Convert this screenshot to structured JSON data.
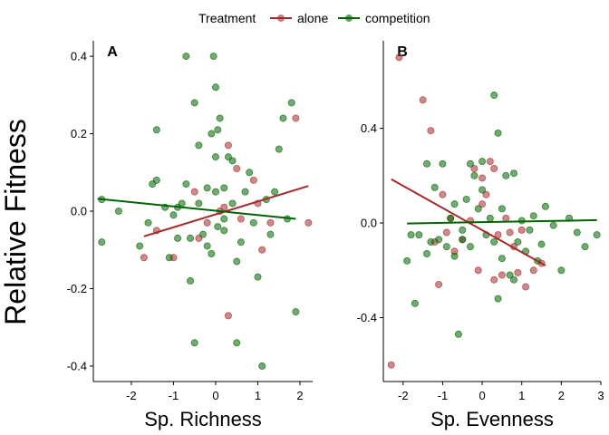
{
  "legend": {
    "title": "Treatment",
    "items": [
      {
        "label": "alone",
        "color": "#a52a2a"
      },
      {
        "label": "competition",
        "color": "#006400"
      }
    ]
  },
  "y_label": "Relative Fitness",
  "chart_data": [
    {
      "type": "scatter",
      "panel": "A",
      "xlabel": "Sp. Richness",
      "ylabel": "Relative Fitness",
      "xlim": [
        -2.9,
        2.3
      ],
      "ylim": [
        -0.44,
        0.44
      ],
      "xticks": [
        -2,
        -1,
        0,
        1,
        2
      ],
      "yticks": [
        -0.4,
        -0.2,
        0.0,
        0.2,
        0.4
      ],
      "ytick_labels": [
        "-0.4",
        "-0.2",
        "0.0",
        "0.2",
        "0.4"
      ],
      "grid": false,
      "series": [
        {
          "name": "alone",
          "color": "#a52a2a",
          "points": [
            [
              -1.7,
              -0.12
            ],
            [
              -1.0,
              -0.12
            ],
            [
              -1.4,
              -0.05
            ],
            [
              -0.5,
              0.05
            ],
            [
              -0.2,
              -0.03
            ],
            [
              0.1,
              0.0
            ],
            [
              0.3,
              0.17
            ],
            [
              0.5,
              0.11
            ],
            [
              0.6,
              -0.02
            ],
            [
              0.9,
              0.08
            ],
            [
              1.0,
              0.02
            ],
            [
              1.3,
              -0.03
            ],
            [
              1.9,
              0.24
            ],
            [
              2.2,
              -0.03
            ],
            [
              0.3,
              -0.27
            ],
            [
              -0.4,
              -0.07
            ],
            [
              0.2,
              0.01
            ],
            [
              1.1,
              -0.1
            ]
          ],
          "trend": [
            [
              -1.7,
              -0.065
            ],
            [
              2.2,
              0.065
            ]
          ]
        },
        {
          "name": "competition",
          "color": "#006400",
          "points": [
            [
              -2.7,
              0.03
            ],
            [
              -2.7,
              -0.08
            ],
            [
              -2.3,
              0.0
            ],
            [
              -1.8,
              -0.09
            ],
            [
              -1.6,
              -0.03
            ],
            [
              -1.5,
              0.07
            ],
            [
              -1.4,
              0.08
            ],
            [
              -1.4,
              0.21
            ],
            [
              -1.2,
              0.01
            ],
            [
              -1.1,
              -0.12
            ],
            [
              -1.0,
              -0.01
            ],
            [
              -0.9,
              0.01
            ],
            [
              -0.8,
              0.02
            ],
            [
              -0.7,
              0.4
            ],
            [
              -0.7,
              0.07
            ],
            [
              -0.6,
              -0.07
            ],
            [
              -0.6,
              -0.18
            ],
            [
              -0.5,
              0.28
            ],
            [
              -0.4,
              0.17
            ],
            [
              -0.4,
              0.02
            ],
            [
              -0.3,
              -0.06
            ],
            [
              -0.2,
              -0.09
            ],
            [
              -0.2,
              0.06
            ],
            [
              -0.1,
              -0.11
            ],
            [
              -0.05,
              0.4
            ],
            [
              0.0,
              0.32
            ],
            [
              0.0,
              0.14
            ],
            [
              0.05,
              0.21
            ],
            [
              0.05,
              -0.04
            ],
            [
              0.1,
              0.24
            ],
            [
              0.2,
              0.06
            ],
            [
              0.2,
              -0.02
            ],
            [
              0.3,
              0.14
            ],
            [
              0.4,
              0.02
            ],
            [
              0.5,
              -0.13
            ],
            [
              0.5,
              -0.34
            ],
            [
              0.6,
              -0.08
            ],
            [
              0.7,
              0.05
            ],
            [
              0.8,
              0.1
            ],
            [
              0.9,
              -0.03
            ],
            [
              1.0,
              -0.17
            ],
            [
              1.1,
              -0.4
            ],
            [
              1.2,
              0.03
            ],
            [
              1.4,
              0.05
            ],
            [
              1.5,
              0.16
            ],
            [
              1.6,
              0.24
            ],
            [
              1.7,
              -0.02
            ],
            [
              1.8,
              0.28
            ],
            [
              1.9,
              -0.26
            ],
            [
              -0.1,
              0.2
            ],
            [
              0.2,
              -0.05
            ],
            [
              -0.9,
              -0.07
            ],
            [
              0.4,
              0.13
            ],
            [
              -0.5,
              -0.34
            ],
            [
              1.3,
              -0.06
            ],
            [
              0.0,
              0.05
            ]
          ],
          "trend": [
            [
              -2.8,
              0.032
            ],
            [
              1.9,
              -0.02
            ]
          ]
        }
      ]
    },
    {
      "type": "scatter",
      "panel": "B",
      "xlabel": "Sp. Evenness",
      "ylabel": "Relative Fitness",
      "xlim": [
        -2.5,
        3.0
      ],
      "ylim": [
        -0.67,
        0.77
      ],
      "xticks": [
        -2,
        -1,
        0,
        1,
        2,
        3
      ],
      "yticks": [
        -0.4,
        0.0,
        0.4
      ],
      "ytick_labels": [
        "-0.4",
        "0.0",
        "0.4"
      ],
      "grid": false,
      "series": [
        {
          "name": "alone",
          "color": "#a52a2a",
          "points": [
            [
              -2.3,
              -0.6
            ],
            [
              -2.1,
              0.7
            ],
            [
              -1.5,
              0.52
            ],
            [
              -1.3,
              0.39
            ],
            [
              -1.0,
              0.12
            ],
            [
              -0.8,
              0.02
            ],
            [
              -1.2,
              -0.08
            ],
            [
              -1.1,
              -0.26
            ],
            [
              -0.7,
              -0.12
            ],
            [
              -0.5,
              -0.07
            ],
            [
              -0.3,
              0.01
            ],
            [
              -0.2,
              0.23
            ],
            [
              0.0,
              0.08
            ],
            [
              0.1,
              0.12
            ],
            [
              0.2,
              0.26
            ],
            [
              0.3,
              0.23
            ],
            [
              0.4,
              -0.05
            ],
            [
              0.5,
              -0.22
            ],
            [
              0.6,
              0.02
            ],
            [
              0.7,
              -0.04
            ],
            [
              0.8,
              -0.1
            ],
            [
              0.9,
              -0.21
            ],
            [
              1.0,
              -0.03
            ],
            [
              1.1,
              -0.27
            ],
            [
              1.3,
              -0.2
            ],
            [
              1.5,
              -0.17
            ],
            [
              -0.1,
              -0.2
            ],
            [
              0.3,
              -0.24
            ],
            [
              -0.9,
              -0.04
            ],
            [
              0.0,
              0.19
            ]
          ],
          "trend": [
            [
              -2.3,
              0.185
            ],
            [
              1.6,
              -0.18
            ]
          ]
        },
        {
          "name": "competition",
          "color": "#006400",
          "points": [
            [
              -1.9,
              -0.16
            ],
            [
              -1.7,
              -0.34
            ],
            [
              -1.6,
              -0.05
            ],
            [
              -1.4,
              0.25
            ],
            [
              -1.4,
              -0.13
            ],
            [
              -1.3,
              -0.08
            ],
            [
              -1.2,
              0.15
            ],
            [
              -1.1,
              -0.07
            ],
            [
              -1.0,
              0.25
            ],
            [
              -0.9,
              -0.1
            ],
            [
              -0.8,
              0.02
            ],
            [
              -0.7,
              0.08
            ],
            [
              -0.7,
              -0.14
            ],
            [
              -0.6,
              -0.47
            ],
            [
              -0.5,
              -0.03
            ],
            [
              -0.4,
              0.1
            ],
            [
              -0.3,
              0.25
            ],
            [
              -0.3,
              -0.1
            ],
            [
              -0.2,
              0.2
            ],
            [
              -0.1,
              0.06
            ],
            [
              0.0,
              0.26
            ],
            [
              0.0,
              0.14
            ],
            [
              0.1,
              -0.05
            ],
            [
              0.2,
              0.02
            ],
            [
              0.3,
              0.54
            ],
            [
              0.3,
              -0.08
            ],
            [
              0.4,
              0.38
            ],
            [
              0.5,
              0.06
            ],
            [
              0.5,
              -0.15
            ],
            [
              0.6,
              0.2
            ],
            [
              0.7,
              -0.22
            ],
            [
              0.8,
              0.21
            ],
            [
              0.9,
              -0.08
            ],
            [
              1.0,
              0.01
            ],
            [
              1.1,
              -0.12
            ],
            [
              1.2,
              -0.03
            ],
            [
              1.3,
              0.03
            ],
            [
              1.5,
              -0.09
            ],
            [
              1.6,
              0.07
            ],
            [
              1.8,
              -0.01
            ],
            [
              2.0,
              -0.2
            ],
            [
              2.2,
              0.02
            ],
            [
              2.4,
              -0.04
            ],
            [
              2.6,
              -0.1
            ],
            [
              2.9,
              -0.05
            ],
            [
              0.4,
              -0.32
            ],
            [
              -0.5,
              -0.07
            ],
            [
              0.8,
              -0.24
            ],
            [
              1.4,
              -0.16
            ],
            [
              -1.8,
              -0.05
            ]
          ],
          "trend": [
            [
              -1.9,
              -0.002
            ],
            [
              2.9,
              0.012
            ]
          ]
        }
      ]
    }
  ]
}
